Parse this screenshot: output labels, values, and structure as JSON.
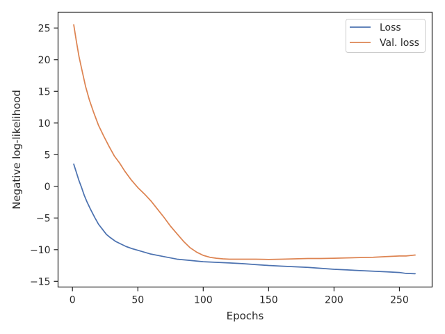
{
  "chart_data": {
    "type": "line",
    "xlabel": "Epochs",
    "ylabel": "Negative log-likelihood",
    "xlim": [
      -11,
      275
    ],
    "ylim": [
      -15.9,
      27.5
    ],
    "xticks": [
      0,
      50,
      100,
      150,
      200,
      250
    ],
    "yticks": [
      -15,
      -10,
      -5,
      0,
      5,
      10,
      15,
      20,
      25
    ],
    "grid": false,
    "legend_position": "top-right",
    "series": [
      {
        "name": "Loss",
        "color": "#4c72b0",
        "x": [
          1,
          3,
          5,
          7,
          9,
          11,
          14,
          17,
          20,
          23,
          26,
          29,
          33,
          37,
          41,
          45,
          50,
          55,
          60,
          70,
          80,
          90,
          100,
          110,
          120,
          130,
          140,
          150,
          160,
          170,
          180,
          190,
          200,
          210,
          220,
          230,
          240,
          250,
          255,
          262
        ],
        "y": [
          3.5,
          2.2,
          0.9,
          -0.2,
          -1.4,
          -2.4,
          -3.7,
          -4.9,
          -6.0,
          -6.8,
          -7.6,
          -8.1,
          -8.7,
          -9.1,
          -9.5,
          -9.8,
          -10.1,
          -10.4,
          -10.7,
          -11.1,
          -11.5,
          -11.7,
          -11.9,
          -12.0,
          -12.1,
          -12.2,
          -12.35,
          -12.5,
          -12.6,
          -12.7,
          -12.8,
          -12.95,
          -13.1,
          -13.2,
          -13.3,
          -13.4,
          -13.5,
          -13.6,
          -13.75,
          -13.8
        ]
      },
      {
        "name": "Val. loss",
        "color": "#dd8452",
        "x": [
          1,
          3,
          5,
          7,
          10,
          13,
          16,
          20,
          24,
          28,
          32,
          36,
          40,
          45,
          50,
          55,
          60,
          65,
          70,
          75,
          80,
          85,
          90,
          95,
          100,
          105,
          110,
          115,
          120,
          130,
          140,
          150,
          160,
          170,
          180,
          190,
          200,
          210,
          220,
          230,
          240,
          250,
          255,
          262
        ],
        "y": [
          25.5,
          22.9,
          20.5,
          18.6,
          15.8,
          13.6,
          11.8,
          9.6,
          7.9,
          6.3,
          4.8,
          3.7,
          2.4,
          1.0,
          -0.2,
          -1.2,
          -2.3,
          -3.6,
          -4.9,
          -6.3,
          -7.5,
          -8.7,
          -9.7,
          -10.4,
          -10.9,
          -11.2,
          -11.35,
          -11.45,
          -11.5,
          -11.5,
          -11.5,
          -11.55,
          -11.5,
          -11.45,
          -11.4,
          -11.4,
          -11.35,
          -11.3,
          -11.25,
          -11.2,
          -11.1,
          -11.0,
          -11.0,
          -10.85
        ]
      }
    ]
  }
}
